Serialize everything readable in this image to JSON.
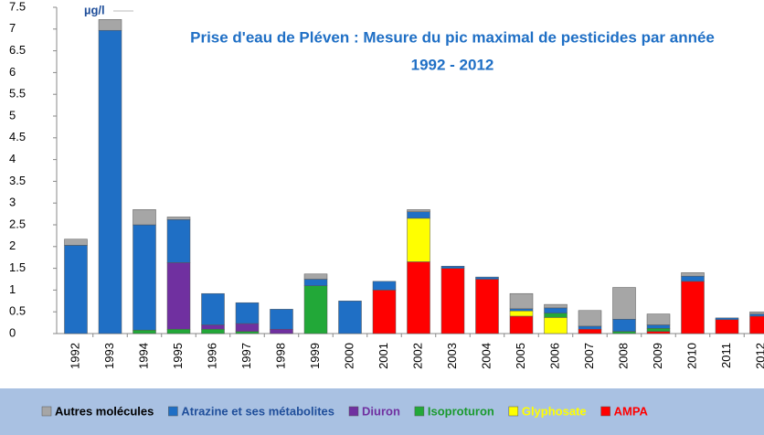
{
  "chart_data": {
    "type": "bar",
    "stacked": true,
    "title": "Prise d'eau de Pléven : Mesure du pic maximal de pesticides par année",
    "subtitle": "1992 - 2012",
    "y_label": "µg/l",
    "categories": [
      "1992",
      "1993",
      "1994",
      "1995",
      "1996",
      "1997",
      "1998",
      "1999",
      "2000",
      "2001",
      "2002",
      "2003",
      "2004",
      "2005",
      "2006",
      "2007",
      "2008",
      "2009",
      "2010",
      "2011",
      "2012"
    ],
    "ylim": [
      0,
      7.5
    ],
    "yticks": [
      0,
      0.5,
      1,
      1.5,
      2,
      2.5,
      3,
      3.5,
      4,
      4.5,
      5,
      5.5,
      6,
      6.5,
      7,
      7.5
    ],
    "grid": false,
    "legend": "bottom",
    "series": [
      {
        "name": "AMPA",
        "color": "#ff0000",
        "legend_text_color": "#ff0000",
        "values": [
          0,
          0,
          0,
          0,
          0,
          0,
          0,
          0,
          0,
          1.0,
          1.65,
          1.5,
          1.25,
          0.4,
          0,
          0.1,
          0,
          0.05,
          1.2,
          0.32,
          0.4
        ]
      },
      {
        "name": "Glyphosate",
        "color": "#ffff00",
        "legend_text_color": "#ffff00",
        "values": [
          0,
          0,
          0,
          0,
          0,
          0,
          0,
          0,
          0,
          0,
          1.0,
          0,
          0,
          0.12,
          0.37,
          0,
          0,
          0,
          0,
          0,
          0
        ]
      },
      {
        "name": "Isoproturon",
        "color": "#22a838",
        "legend_text_color": "#1a9a2e",
        "values": [
          0,
          0,
          0.08,
          0.1,
          0.1,
          0.05,
          0,
          1.1,
          0,
          0,
          0,
          0,
          0,
          0,
          0.1,
          0,
          0.05,
          0.07,
          0,
          0,
          0
        ]
      },
      {
        "name": "Diuron",
        "color": "#7030a0",
        "legend_text_color": "#7030a0",
        "values": [
          0,
          0,
          0,
          1.53,
          0.1,
          0.18,
          0.1,
          0,
          0,
          0,
          0,
          0,
          0,
          0,
          0,
          0,
          0,
          0,
          0,
          0,
          0
        ]
      },
      {
        "name": "Atrazine et ses métabolites",
        "color": "#1f6fc5",
        "legend_text_color": "#1f4e9a",
        "values": [
          2.03,
          6.97,
          2.42,
          0.99,
          0.72,
          0.48,
          0.46,
          0.15,
          0.75,
          0.2,
          0.15,
          0.05,
          0.05,
          0.05,
          0.12,
          0.07,
          0.28,
          0.08,
          0.12,
          0.04,
          0.05
        ]
      },
      {
        "name": "Autres molécules",
        "color": "#a6a6a6",
        "legend_text_color": "#000000",
        "values": [
          0.14,
          0.25,
          0.35,
          0.06,
          0,
          0,
          0,
          0.12,
          0,
          0,
          0.05,
          0,
          0,
          0.35,
          0.08,
          0.36,
          0.73,
          0.25,
          0.08,
          0,
          0.05
        ]
      }
    ]
  }
}
